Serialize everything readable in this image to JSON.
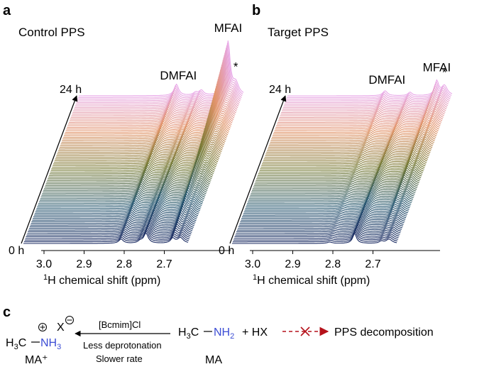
{
  "figure": {
    "panels": {
      "a": {
        "letter": "a",
        "title": "Control PPS"
      },
      "b": {
        "letter": "b",
        "title": "Target PPS"
      },
      "c": {
        "letter": "c"
      }
    }
  },
  "chart_data": [
    {
      "type": "area",
      "panel": "a",
      "title": "Control PPS",
      "subtype": "stacked 1H NMR spectra (waterfall)",
      "xlabel_sup": "1",
      "xlabel_main": "H chemical shift (ppm)",
      "x_ticks": [
        "3.0",
        "2.9",
        "2.8",
        "2.7"
      ],
      "x_range_ppm": [
        3.05,
        2.62
      ],
      "x_reversed": true,
      "time_start": "0 h",
      "time_end": "24 h",
      "n_spectra": 90,
      "peak_labels": [
        {
          "label": "DMFAI",
          "ppm": 2.79
        },
        {
          "label": "MFAI",
          "ppm": 2.66
        },
        {
          "label": "*",
          "ppm": 2.64
        }
      ],
      "peaks": [
        {
          "ppm": 2.795,
          "width": 0.007,
          "h0": 6,
          "h24": 16
        },
        {
          "ppm": 2.745,
          "width": 0.007,
          "h0": 3,
          "h24": 4
        },
        {
          "ppm": 2.73,
          "width": 0.007,
          "h0": 14,
          "h24": 7
        },
        {
          "ppm": 2.66,
          "width": 0.0065,
          "h0": 7,
          "h24": 75
        },
        {
          "ppm": 2.64,
          "width": 0.009,
          "h0": 8,
          "h24": 16
        }
      ]
    },
    {
      "type": "area",
      "panel": "b",
      "title": "Target PPS",
      "subtype": "stacked 1H NMR spectra (waterfall)",
      "xlabel_sup": "1",
      "xlabel_main": "H chemical shift (ppm)",
      "x_ticks": [
        "3.0",
        "2.9",
        "2.8",
        "2.7"
      ],
      "x_range_ppm": [
        3.05,
        2.62
      ],
      "x_reversed": true,
      "time_start": "0 h",
      "time_end": "24 h",
      "n_spectra": 90,
      "peak_labels": [
        {
          "label": "DMFAI",
          "ppm": 2.79
        },
        {
          "label": "MFAI",
          "ppm": 2.66
        },
        {
          "label": "*",
          "ppm": 2.64
        }
      ],
      "peaks": [
        {
          "ppm": 2.795,
          "width": 0.007,
          "h0": 2,
          "h24": 7
        },
        {
          "ppm": 2.73,
          "width": 0.006,
          "h0": 14,
          "h24": 5
        },
        {
          "ppm": 2.66,
          "width": 0.006,
          "h0": 3,
          "h24": 20
        },
        {
          "ppm": 2.64,
          "width": 0.009,
          "h0": 6,
          "h24": 14
        }
      ]
    }
  ],
  "scheme": {
    "reactant_label": "MA⁺",
    "reactant_counterion": "X",
    "reactant_prefix": "H",
    "reactant_sub3": "3",
    "reactant_carbon": "C",
    "reactant_nitrogen": "NH",
    "reactant_n_sub": "3",
    "reagent": "[Bcmim]Cl",
    "condition_1": "Less deprotonation",
    "condition_2": "Slower rate",
    "product_prefix": "H",
    "product_sub3": "3",
    "product_carbon": "C",
    "product_nitrogen": "NH",
    "product_n_sub": "2",
    "product_label": "MA",
    "byproduct": "+ HX",
    "outcome": "PPS decomposition",
    "colors": {
      "amine": "#3b4cd4",
      "blocked": "#b5121b"
    }
  }
}
